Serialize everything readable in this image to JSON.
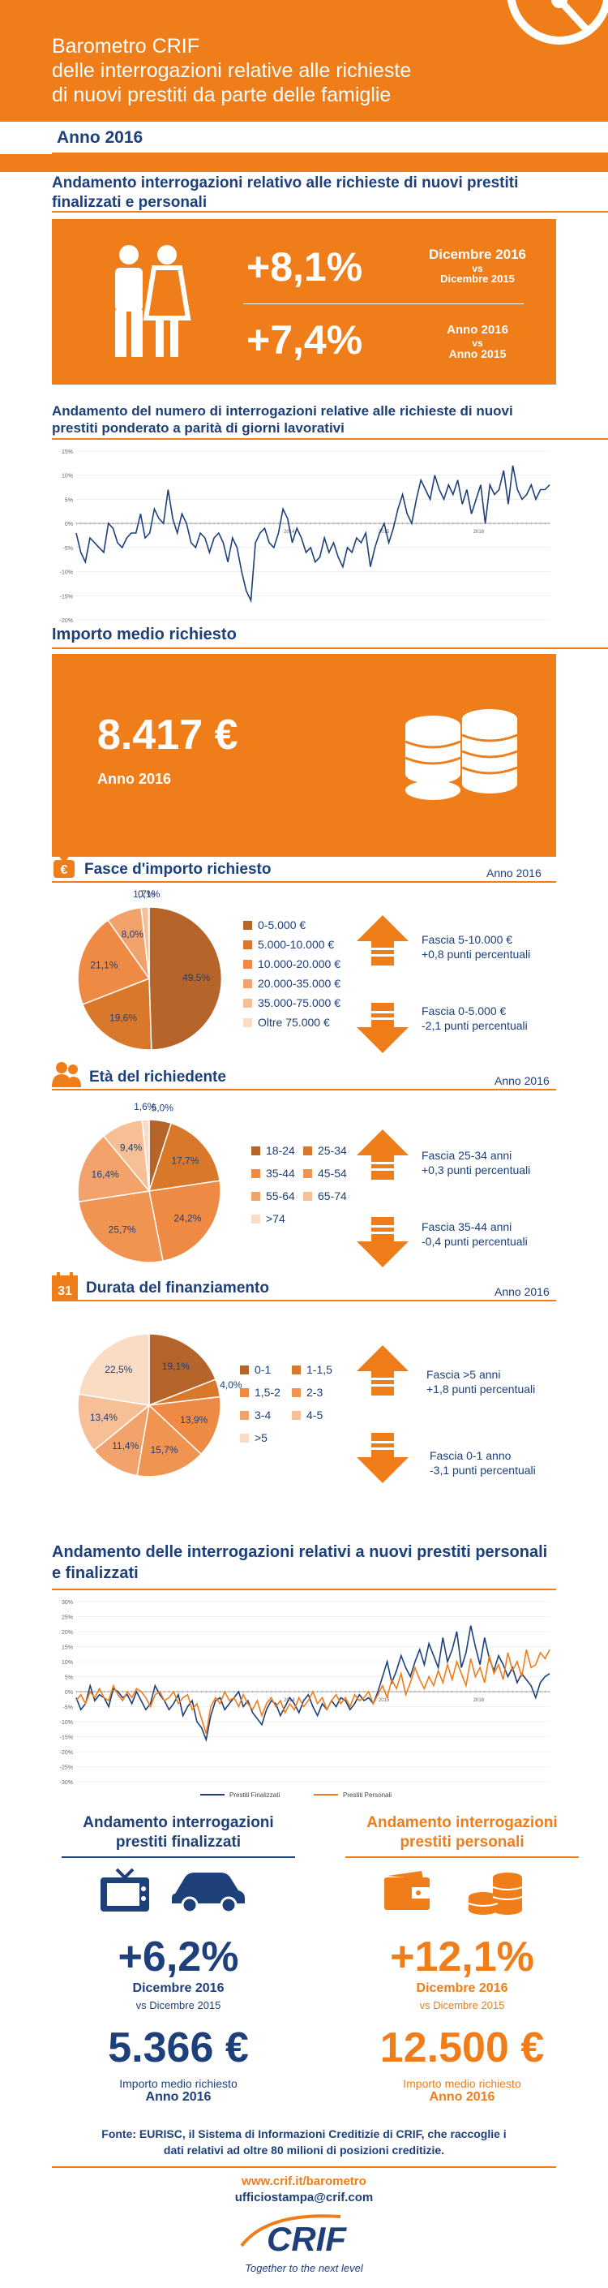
{
  "header": {
    "line1": "Barometro CRIF",
    "line2": "delle interrogazioni relative alle richieste",
    "line3": "di nuovi prestiti da parte delle famiglie",
    "year": "Anno 2016"
  },
  "s1": {
    "title": "Andamento interrogazioni relativo alle richieste di nuovi prestiti finalizzati e personali",
    "value1": "+8,1%",
    "label1_a": "Dicembre 2016",
    "label1_b": "vs",
    "label1_c": "Dicembre 2015",
    "value2": "+7,4%",
    "label2_a": "Anno 2016",
    "label2_b": "vs",
    "label2_c": "Anno 2015"
  },
  "s2": {
    "title": "Andamento del numero di interrogazioni relative alle richieste di nuovi prestiti ponderato a parità di giorni lavorativi"
  },
  "s3": {
    "title": "Importo medio richiesto",
    "amount": "8.417 €",
    "year": "Anno 2016"
  },
  "fasce": {
    "title": "Fasce d'importo richiesto",
    "year": "Anno 2016",
    "note_up_1": "Fascia 5-10.000 €",
    "note_up_2": "+0,8 punti percentuali",
    "note_down_1": "Fascia 0-5.000 €",
    "note_down_2": "-2,1 punti percentuali"
  },
  "eta": {
    "title": "Età del richiedente",
    "year": "Anno 2016",
    "note_up_1": "Fascia 25-34 anni",
    "note_up_2": "+0,3 punti percentuali",
    "note_down_1": "Fascia 35-44 anni",
    "note_down_2": "-0,4 punti percentuali"
  },
  "durata": {
    "title": "Durata del finanziamento",
    "year": "Anno 2016",
    "calendar_num": "31",
    "note_up_1": "Fascia >5 anni",
    "note_up_2": "+1,8 punti percentuali",
    "note_down_1": "Fascia 0-1 anno",
    "note_down_2": "-3,1 punti percentuali"
  },
  "s7": {
    "title": "Andamento delle interrogazioni relativi a nuovi prestiti personali e finalizzati"
  },
  "finalizzati": {
    "title_1": "Andamento interrogazioni",
    "title_2": "prestiti finalizzati",
    "value": "+6,2%",
    "sub": "Dicembre 2016",
    "tiny": "vs Dicembre 2015",
    "amount": "5.366 €",
    "amount_label_1": "Importo medio richiesto",
    "amount_label_2": "Anno 2016"
  },
  "personali": {
    "title_1": "Andamento interrogazioni",
    "title_2": "prestiti personali",
    "value": "+12,1%",
    "sub": "Dicembre 2016",
    "tiny": "vs Dicembre 2015",
    "amount": "12.500 €",
    "amount_label_1": "Importo medio richiesto",
    "amount_label_2": "Anno 2016"
  },
  "footer": {
    "source_1": "Fonte: EURISC, il Sistema di Informazioni Creditizie di CRIF, che raccoglie i",
    "source_2": "dati relativi ad oltre 80 milioni di posizioni creditizie.",
    "link_1": "www.crif.it/barometro",
    "link_2": "ufficiostampa@crif.com",
    "logo_text": "CRIF",
    "tagline": "Together to the next level"
  },
  "colors": {
    "orange": "#ef7d1a",
    "navy": "#1d3f7a",
    "brown": "#b5652a"
  },
  "chart_data": [
    {
      "type": "line",
      "title": "",
      "x_tick_labels": [
        "2014",
        "2015",
        "2016"
      ],
      "y_tick_labels": [
        "15%",
        "10%",
        "5%",
        "0%",
        "-5%",
        "-10%",
        "-15%",
        "-20%"
      ],
      "ylim": [
        -20,
        15
      ],
      "series": [
        {
          "values": [
            -2,
            -6,
            -8,
            -3,
            -4,
            -5,
            -6,
            0,
            -1,
            -4,
            -5,
            -3,
            -2,
            -2,
            2,
            -3,
            -2,
            3,
            1,
            0,
            7,
            1,
            -2,
            2,
            0,
            -4,
            -5,
            -2,
            -3,
            -6,
            -3,
            -2,
            -4,
            -8,
            -3,
            -5,
            -10,
            -14,
            -16,
            -4,
            -2,
            -1,
            -4,
            -5,
            -2,
            3,
            1,
            -4,
            -1,
            -3,
            -6,
            -5,
            -8,
            -7,
            -3,
            -6,
            -4,
            -7,
            -9,
            -5,
            -6,
            -3,
            -4,
            -2,
            -9,
            -5,
            -2,
            0,
            -4,
            -1,
            3,
            6,
            2,
            0,
            5,
            9,
            7,
            5,
            10,
            7,
            5,
            8,
            6,
            9,
            4,
            7,
            2,
            5,
            8,
            0,
            8,
            6,
            7,
            11,
            4,
            12,
            7,
            5,
            6,
            8,
            5,
            7,
            7,
            8
          ]
        }
      ]
    },
    {
      "type": "pie",
      "categories": [
        "0-5.000 €",
        "5.000-10.000 €",
        "10.000-20.000 €",
        "20.000-35.000 €",
        "35.000-75.000 €",
        "Oltre 75.000 €"
      ],
      "values": [
        49.5,
        19.6,
        21.1,
        8.0,
        1.7,
        0.1
      ],
      "labels": [
        "49,5%",
        "19,6%",
        "21,1%",
        "8,0%",
        "1,7%",
        "0,1%"
      ],
      "colors": [
        "#b5652a",
        "#d9782a",
        "#ef8a45",
        "#f2a36b",
        "#f6bf96",
        "#fadcc5"
      ]
    },
    {
      "type": "pie",
      "categories": [
        "18-24",
        "25-34",
        "35-44",
        "45-54",
        "55-64",
        "65-74",
        ">74"
      ],
      "values": [
        5.0,
        17.7,
        24.2,
        25.7,
        16.4,
        9.4,
        1.6
      ],
      "labels": [
        "5,0%",
        "17,7%",
        "24,2%",
        "25,7%",
        "16,4%",
        "9,4%",
        "1,6%"
      ],
      "colors": [
        "#b5652a",
        "#d9782a",
        "#ef8a45",
        "#f09452",
        "#f2a36b",
        "#f6bf96",
        "#fadcc5"
      ]
    },
    {
      "type": "pie",
      "categories": [
        "0-1",
        "1-1,5",
        "1,5-2",
        "2-3",
        "3-4",
        "4-5",
        ">5"
      ],
      "values": [
        19.1,
        4.0,
        13.9,
        15.7,
        11.4,
        13.4,
        22.5
      ],
      "labels": [
        "19,1%",
        "4,0%",
        "13,9%",
        "15,7%",
        "11,4%",
        "13,4%",
        "22,5%"
      ],
      "colors": [
        "#b5652a",
        "#d9782a",
        "#ef8a45",
        "#f09452",
        "#f2a36b",
        "#f6bf96",
        "#fadcc5"
      ]
    },
    {
      "type": "line",
      "title": "",
      "x_tick_labels": [
        "2014",
        "2015",
        "2016"
      ],
      "y_tick_labels": [
        "30%",
        "25%",
        "20%",
        "15%",
        "10%",
        "5%",
        "0%",
        "-5%",
        "-10%",
        "-15%",
        "-20%",
        "-25%",
        "-30%"
      ],
      "ylim": [
        -30,
        30
      ],
      "legend": "bottom",
      "series": [
        {
          "name": "Prestiti Finalizzati",
          "color": "#1d3f7a",
          "values": [
            -2,
            -6,
            -4,
            2,
            -3,
            -1,
            -2,
            -5,
            1,
            0,
            -2,
            -1,
            -4,
            0,
            -3,
            -6,
            -4,
            2,
            -1,
            -3,
            -6,
            -4,
            -1,
            -8,
            -5,
            -3,
            -10,
            -12,
            -16,
            -8,
            -3,
            -2,
            -6,
            -4,
            -2,
            0,
            -5,
            -3,
            -7,
            -9,
            -11,
            -6,
            -3,
            -4,
            -8,
            -5,
            -2,
            -4,
            -7,
            -3,
            -1,
            -5,
            -8,
            -4,
            -6,
            -3,
            -5,
            -2,
            -3,
            -6,
            -4,
            -1,
            -3,
            -2,
            -4,
            0,
            5,
            10,
            3,
            7,
            12,
            8,
            5,
            10,
            14,
            9,
            16,
            12,
            8,
            18,
            10,
            14,
            20,
            8,
            13,
            22,
            15,
            9,
            18,
            11,
            7,
            12,
            9,
            5,
            8,
            3,
            6,
            4,
            2,
            -2,
            3,
            5,
            6
          ]
        },
        {
          "name": "Prestiti Personali",
          "color": "#ef7d1a",
          "values": [
            -3,
            -1,
            -4,
            0,
            -2,
            1,
            -2,
            -3,
            2,
            -1,
            -3,
            0,
            -2,
            1,
            0,
            -2,
            -5,
            -1,
            0,
            -3,
            -2,
            0,
            -4,
            -2,
            -1,
            -6,
            -4,
            -9,
            -14,
            -5,
            -2,
            -4,
            0,
            -3,
            -2,
            -5,
            -1,
            -4,
            -6,
            -3,
            -8,
            -4,
            -2,
            -5,
            -3,
            -7,
            -4,
            -6,
            -2,
            -5,
            -3,
            0,
            -4,
            -2,
            -6,
            -3,
            -1,
            -4,
            -2,
            -5,
            -1,
            -3,
            -2,
            0,
            -4,
            -1,
            2,
            -2,
            4,
            1,
            6,
            -1,
            3,
            8,
            4,
            1,
            5,
            2,
            7,
            3,
            9,
            4,
            10,
            6,
            2,
            11,
            5,
            8,
            3,
            12,
            6,
            9,
            4,
            13,
            7,
            10,
            5,
            14,
            8,
            9,
            13,
            11,
            14
          ]
        }
      ]
    }
  ]
}
